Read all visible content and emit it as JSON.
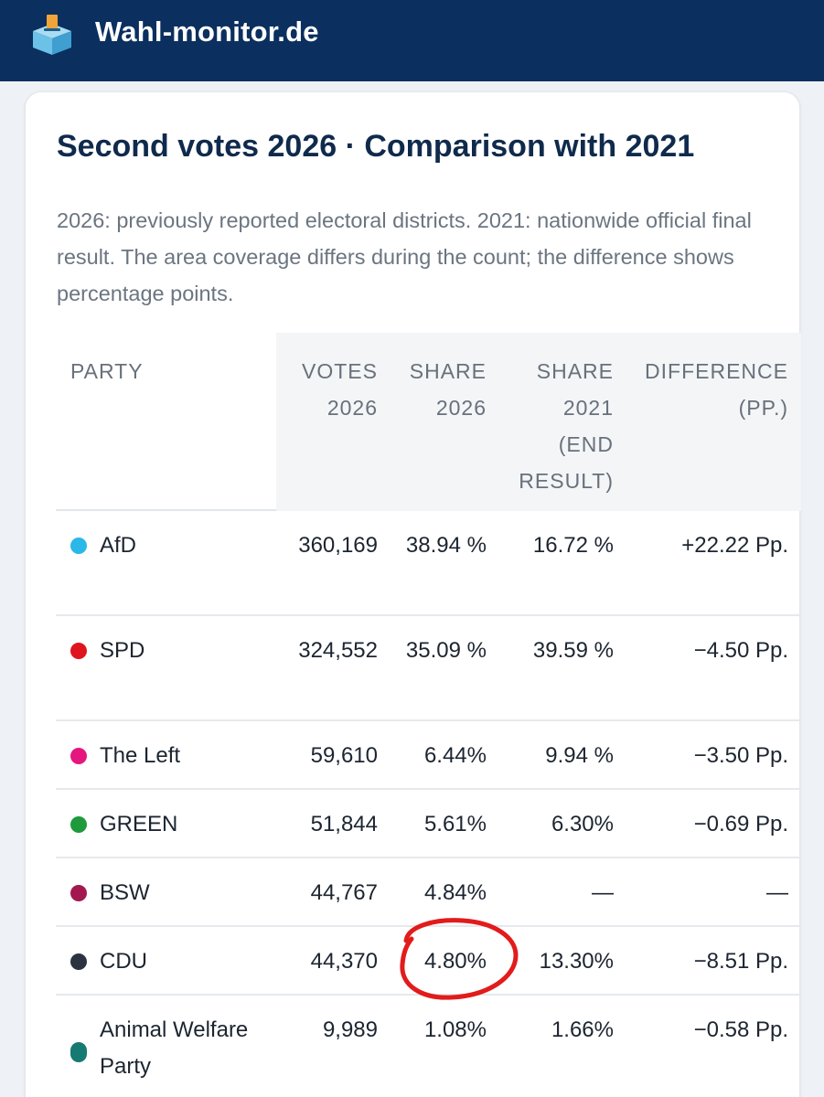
{
  "header": {
    "brand": "Wahl-monitor.de"
  },
  "card": {
    "title": "Second votes 2026 · Comparison with 2021",
    "description": "2026: previously reported electoral districts. 2021: nationwide official final result. The area coverage differs during the count; the difference shows percentage points."
  },
  "table": {
    "columns": {
      "party": "PARTY",
      "votes": "VOTES 2026",
      "share2026": "SHARE 2026",
      "share2021": "SHARE 2021 (END RESULT)",
      "difference": "DIFFERENCE (PP.)"
    },
    "rows": [
      {
        "party": "AfD",
        "color": "#29b8e8",
        "votes": "360,169",
        "share2026": "38.94 %",
        "share2021": "16.72 %",
        "difference": "+22.22 Pp."
      },
      {
        "party": "SPD",
        "color": "#e0141e",
        "votes": "324,552",
        "share2026": "35.09 %",
        "share2021": "39.59 %",
        "difference": "−4.50 Pp."
      },
      {
        "party": "The Left",
        "color": "#e5177e",
        "votes": "59,610",
        "share2026": "6.44%",
        "share2021": "9.94 %",
        "difference": "−3.50 Pp."
      },
      {
        "party": "GREEN",
        "color": "#1e9a3c",
        "votes": "51,844",
        "share2026": "5.61%",
        "share2021": "6.30%",
        "difference": "−0.69 Pp."
      },
      {
        "party": "BSW",
        "color": "#a3194f",
        "votes": "44,767",
        "share2026": "4.84%",
        "share2021": "—",
        "difference": "—"
      },
      {
        "party": "CDU",
        "color": "#2b3340",
        "votes": "44,370",
        "share2026": "4.80%",
        "share2021": "13.30%",
        "difference": "−8.51 Pp."
      },
      {
        "party": "Animal Welfare Party",
        "color": "#157a72",
        "votes": "9,989",
        "share2026": "1.08%",
        "share2021": "1.66%",
        "difference": "−0.58 Pp."
      }
    ]
  },
  "colors": {
    "header_bg": "#0b2f5e",
    "title": "#0f2a4c",
    "annotation": "#e21b1b"
  },
  "icons": {
    "logo": "ballot-box-icon"
  }
}
